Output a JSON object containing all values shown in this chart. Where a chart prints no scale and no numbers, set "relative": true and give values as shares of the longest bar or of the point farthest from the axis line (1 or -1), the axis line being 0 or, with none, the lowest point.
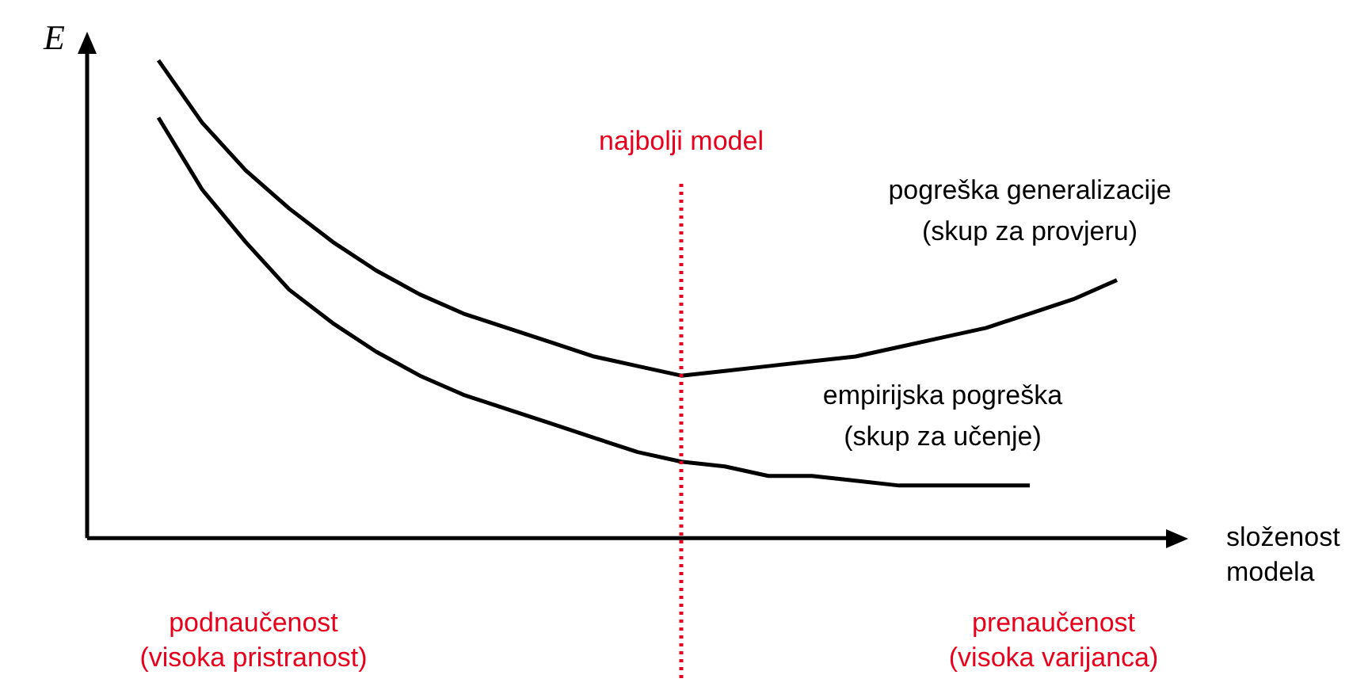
{
  "chart_data": {
    "type": "line",
    "relative": true,
    "ylabel": "E",
    "xlabel": "složenost\nmodela",
    "categories": [
      null,
      null,
      null,
      null,
      null,
      null,
      null,
      null,
      null,
      null,
      null,
      null,
      null,
      null,
      null,
      null,
      null,
      null,
      null,
      null,
      null,
      null,
      null
    ],
    "grid": false,
    "legend": false,
    "marker": "none",
    "line_style": "solid",
    "series": [
      {
        "name": "pogreška generalizacije\n(skup za provjeru)",
        "color": "#000000",
        "values": [
          1.0,
          0.87,
          0.77,
          0.69,
          0.62,
          0.56,
          0.51,
          0.47,
          0.44,
          0.41,
          0.38,
          0.36,
          0.34,
          0.35,
          0.36,
          0.37,
          0.38,
          0.4,
          0.42,
          0.44,
          0.47,
          0.5,
          0.54
        ]
      },
      {
        "name": "empirijska pogreška\n(skup za učenje)",
        "color": "#000000",
        "values": [
          0.88,
          0.73,
          0.62,
          0.52,
          0.45,
          0.39,
          0.34,
          0.3,
          0.27,
          0.24,
          0.21,
          0.18,
          0.16,
          0.15,
          0.13,
          0.13,
          0.12,
          0.11,
          0.11,
          0.11,
          0.11,
          null,
          null
        ]
      }
    ],
    "ref_lines": [
      {
        "axis": "x",
        "label": "najbolji model",
        "color": "#e8001c",
        "line_style": "dotted"
      }
    ],
    "annotations": [
      "podnaučenost\n(visoka pristranost)",
      "prenaučenost\n(visoka varijanca)"
    ]
  }
}
